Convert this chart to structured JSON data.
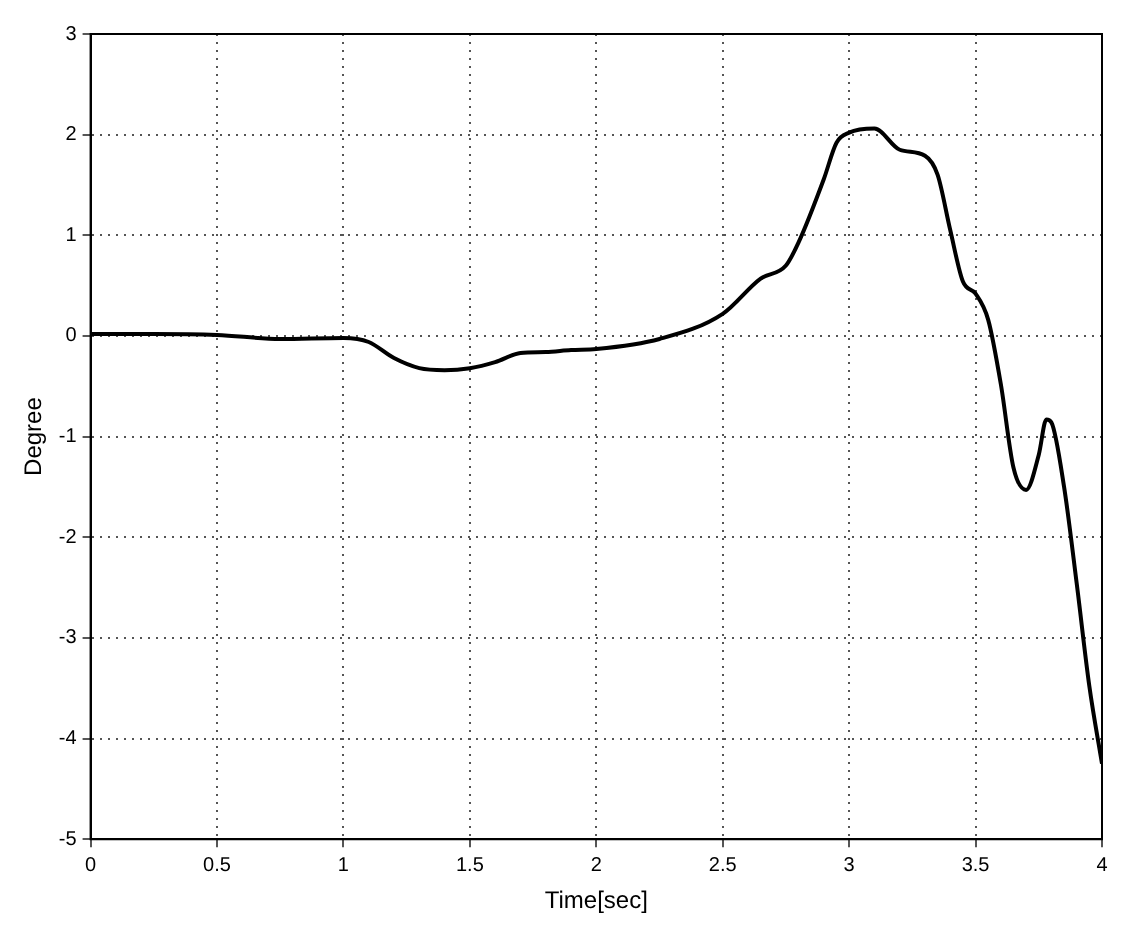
{
  "chart_data": {
    "type": "line",
    "xlabel": "Time[sec]",
    "ylabel": "Degree",
    "x": [
      0,
      0.25,
      0.5,
      0.75,
      1.0,
      1.1,
      1.2,
      1.3,
      1.4,
      1.5,
      1.6,
      1.7,
      1.8,
      1.9,
      2.0,
      2.25,
      2.5,
      2.65,
      2.75,
      2.8,
      2.9,
      2.95,
      3.0,
      3.1,
      3.2,
      3.3,
      3.35,
      3.4,
      3.45,
      3.5,
      3.55,
      3.6,
      3.65,
      3.7,
      3.75,
      3.78,
      3.8,
      3.85,
      3.9,
      3.95,
      4.0
    ],
    "series": [
      {
        "color": "#000000",
        "values": [
          0.02,
          0.02,
          0.01,
          -0.03,
          -0.02,
          -0.06,
          -0.22,
          -0.32,
          -0.34,
          -0.32,
          -0.26,
          -0.17,
          -0.16,
          -0.14,
          -0.13,
          -0.03,
          0.22,
          0.57,
          0.7,
          0.93,
          1.56,
          1.92,
          2.02,
          2.06,
          1.85,
          1.79,
          1.6,
          1.05,
          0.54,
          0.42,
          0.16,
          -0.48,
          -1.31,
          -1.53,
          -1.18,
          -0.83,
          -0.86,
          -1.5,
          -2.46,
          -3.48,
          -4.25
        ]
      }
    ],
    "xlim": [
      0,
      4
    ],
    "xticks": [
      0,
      0.5,
      1,
      1.5,
      2,
      2.5,
      3,
      3.5,
      4
    ],
    "ylim": [
      -5,
      3
    ],
    "yticks": [
      -5,
      -4,
      -3,
      -2,
      -1,
      0,
      1,
      2,
      3
    ],
    "grid": true,
    "legend": false,
    "marker": "none",
    "line_style": "solid"
  }
}
